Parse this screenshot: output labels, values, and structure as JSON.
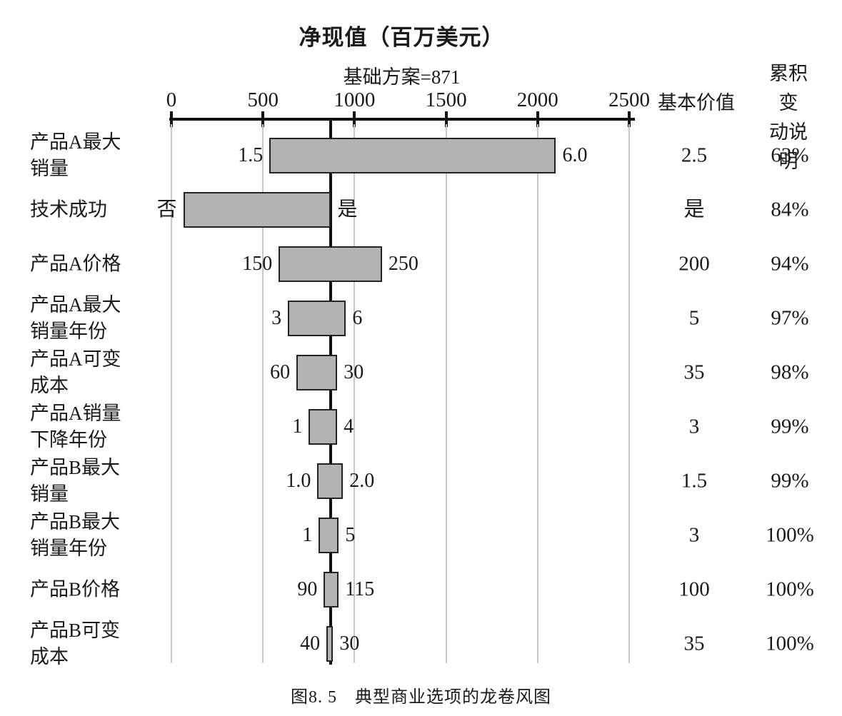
{
  "figure": {
    "caption": "图8. 5　典型商业选项的龙卷风图"
  },
  "columns": {
    "base_value_header": "基本价值",
    "cumulative_header": "累积变\n动说明"
  },
  "chart_data": {
    "type": "bar",
    "variant": "tornado",
    "orientation": "horizontal",
    "title": "净现值（百万美元）",
    "subtitle": "基础方案=871",
    "base_case_npv": 871,
    "x_axis": {
      "min": 0,
      "max": 2500,
      "ticks": [
        0,
        500,
        1000,
        1500,
        2000,
        2500
      ],
      "grid": true
    },
    "grid_color": "#c8c8c8",
    "bar_fill": "#b3b3b3",
    "bar_border": "#232323",
    "axis_color": "#111111",
    "rows": [
      {
        "label": "产品A最大\n销量",
        "low_label": "1.5",
        "high_label": "6.0",
        "npv_low": 535,
        "npv_high": 2100,
        "base_value": "2.5",
        "cumulative": "63%"
      },
      {
        "label": "技术成功",
        "low_label": "否",
        "high_label": "是",
        "npv_low": 65,
        "npv_high": 871,
        "base_value": "是",
        "cumulative": "84%"
      },
      {
        "label": "产品A价格",
        "low_label": "150",
        "high_label": "250",
        "npv_low": 586,
        "npv_high": 1150,
        "base_value": "200",
        "cumulative": "94%"
      },
      {
        "label": "产品A最大\n销量年份",
        "low_label": "3",
        "high_label": "6",
        "npv_low": 636,
        "npv_high": 953,
        "base_value": "5",
        "cumulative": "97%"
      },
      {
        "label": "产品A可变\n成本",
        "low_label": "60",
        "high_label": "30",
        "npv_low": 683,
        "npv_high": 906,
        "base_value": "35",
        "cumulative": "98%"
      },
      {
        "label": "产品A销量\n下降年份",
        "low_label": "1",
        "high_label": "4",
        "npv_low": 750,
        "npv_high": 906,
        "base_value": "3",
        "cumulative": "99%"
      },
      {
        "label": "产品B最大\n销量",
        "low_label": "1.0",
        "high_label": "2.0",
        "npv_low": 797,
        "npv_high": 937,
        "base_value": "1.5",
        "cumulative": "99%"
      },
      {
        "label": "产品B最大\n销量年份",
        "low_label": "1",
        "high_label": "5",
        "npv_low": 805,
        "npv_high": 914,
        "base_value": "3",
        "cumulative": "100%"
      },
      {
        "label": "产品B价格",
        "low_label": "90",
        "high_label": "115",
        "npv_low": 832,
        "npv_high": 914,
        "base_value": "100",
        "cumulative": "100%"
      },
      {
        "label": "产品B可变\n成本",
        "low_label": "40",
        "high_label": "30",
        "npv_low": 847,
        "npv_high": 883,
        "base_value": "35",
        "cumulative": "100%"
      }
    ]
  }
}
